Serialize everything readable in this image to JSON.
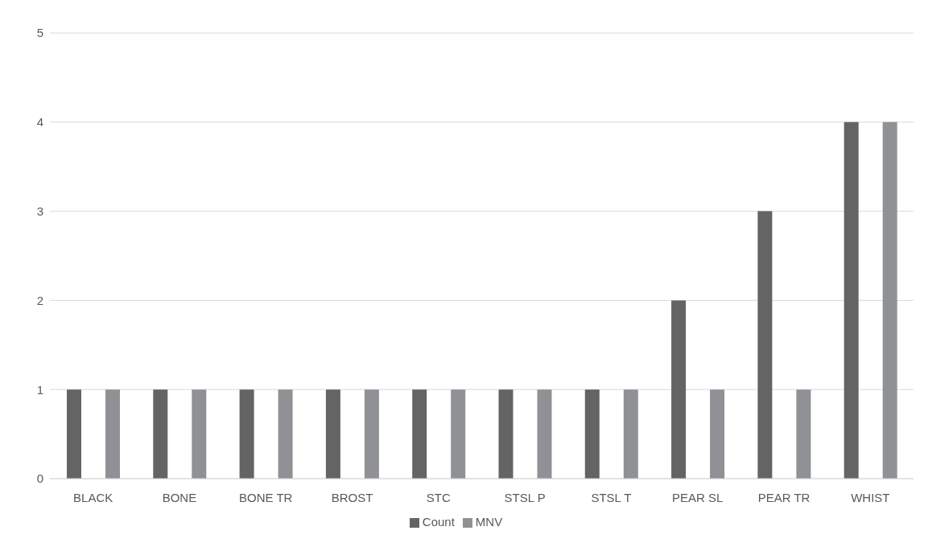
{
  "chart_data": {
    "type": "bar",
    "categories": [
      "BLACK",
      "BONE",
      "BONE TR",
      "BROST",
      "STC",
      "STSL P",
      "STSL T",
      "PEAR SL",
      "PEAR TR",
      "WHIST"
    ],
    "series": [
      {
        "name": "Count",
        "color": "#646464",
        "values": [
          1,
          1,
          1,
          1,
          1,
          1,
          1,
          2,
          3,
          4
        ]
      },
      {
        "name": "MNV",
        "color": "#8f9194",
        "values": [
          1,
          1,
          1,
          1,
          1,
          1,
          1,
          1,
          1,
          4
        ]
      }
    ],
    "ylim": [
      0,
      5
    ],
    "yticks": [
      0,
      1,
      2,
      3,
      4,
      5
    ],
    "grid": "y",
    "legend": "bottom"
  }
}
